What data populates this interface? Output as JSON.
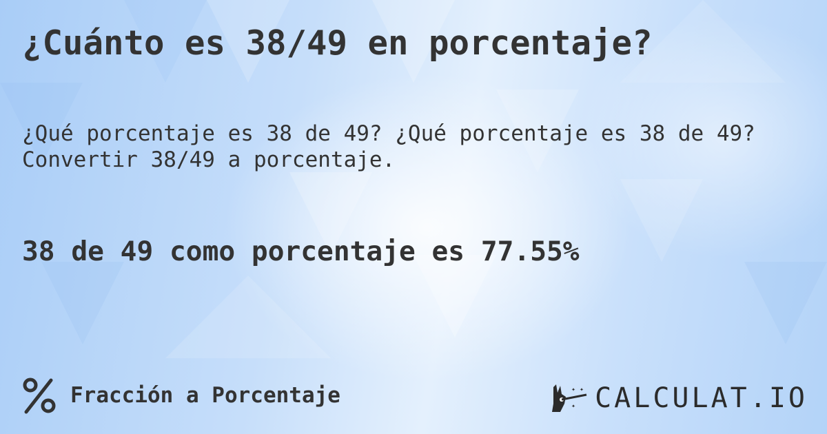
{
  "title": "¿Cuánto es 38/49 en porcentaje?",
  "subtitle": "¿Qué porcentaje es 38 de 49? ¿Qué porcentaje es 38 de 49? Convertir 38/49 a porcentaje.",
  "result": "38 de 49 como porcentaje es 77.55%",
  "footer": {
    "icon": "percent-icon",
    "label": "Fracción a Porcentaje"
  },
  "logo": {
    "icon": "magic-hand-wand-icon",
    "text": "CALCULAT.IO"
  },
  "colors": {
    "text": "#333333",
    "background": "#c6defa"
  }
}
